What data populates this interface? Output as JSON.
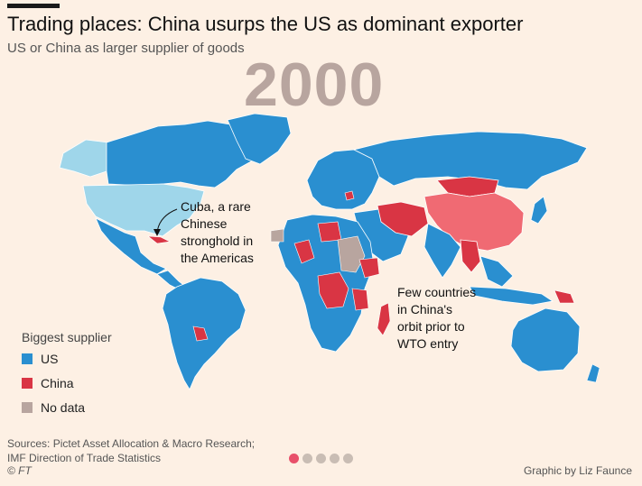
{
  "header": {
    "title": "Trading places: China usurps the US as dominant exporter",
    "subtitle": "US or China as larger supplier of goods",
    "year": "2000"
  },
  "annotations": {
    "cuba": [
      "Cuba, a rare",
      "Chinese",
      "stronghold in",
      "the Americas"
    ],
    "africa": [
      "Few countries",
      "in China's",
      "orbit prior to",
      "WTO entry"
    ]
  },
  "legend": {
    "title": "Biggest supplier",
    "items": [
      {
        "label": "US",
        "color": "#2a8fd0"
      },
      {
        "label": "China",
        "color": "#d93544"
      },
      {
        "label": "No data",
        "color": "#b8a59f"
      }
    ]
  },
  "highlight_colors": {
    "usa": "#9fd6ea",
    "china": "#f06a73"
  },
  "footer": {
    "source_lines": [
      "Sources: Pictet Asset Allocation & Macro Research;",
      "IMF Direction of Trade Statistics"
    ],
    "copyright": "© FT",
    "credit": "Graphic by Liz Faunce"
  },
  "pagination": {
    "total": 5,
    "current": 1
  }
}
